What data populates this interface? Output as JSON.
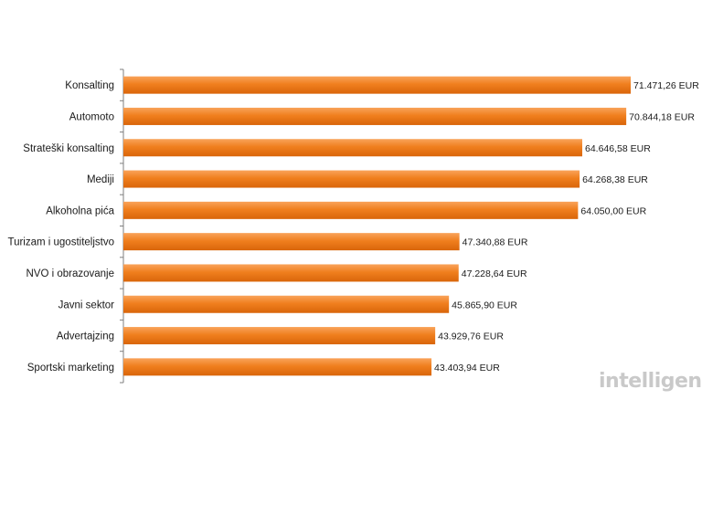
{
  "chart_data": {
    "type": "bar",
    "orientation": "horizontal",
    "categories": [
      "Konsalting",
      "Automoto",
      "Strateški konsalting",
      "Mediji",
      "Alkoholna pića",
      "Turizam i ugostiteljstvo",
      "NVO i obrazovanje",
      "Javni sektor",
      "Advertajzing",
      "Sportski marketing"
    ],
    "values": [
      71471.26,
      70844.18,
      64646.58,
      64268.38,
      64050.0,
      47340.88,
      47228.64,
      45865.9,
      43929.76,
      43403.94
    ],
    "value_labels": [
      "71.471,26 EUR",
      "70.844,18 EUR",
      "64.646,58 EUR",
      "64.268,38 EUR",
      "64.050,00 EUR",
      "47.340,88 EUR",
      "47.228,64 EUR",
      "45.865,90 EUR",
      "43.929,76 EUR",
      "43.403,94 EUR"
    ],
    "xlim": [
      0,
      75000
    ],
    "grid": false,
    "bar_color": "#f07f1e",
    "bar_color_dark": "#d9650a",
    "bar_color_light": "#f9a35a"
  },
  "watermark": {
    "logo_text": "intelligence"
  }
}
